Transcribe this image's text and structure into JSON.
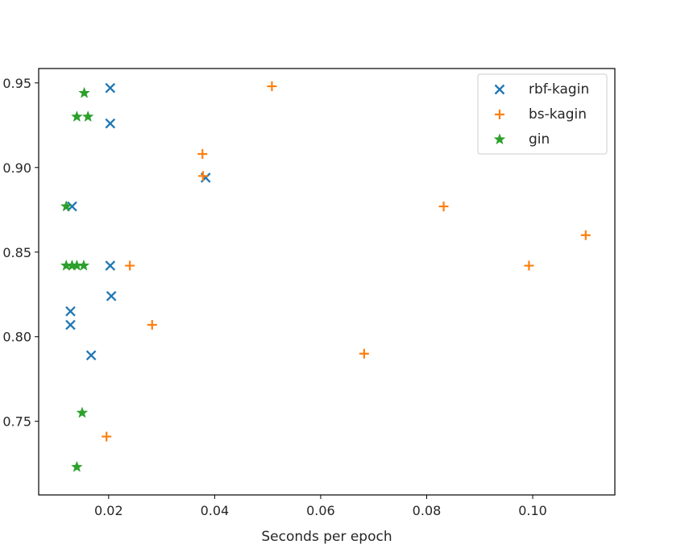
{
  "chart_data": {
    "type": "scatter",
    "title": "",
    "xlabel": "Seconds per epoch",
    "ylabel": "",
    "xlim": [
      0.0068,
      0.1155
    ],
    "ylim": [
      0.7065,
      0.9585
    ],
    "xticks": [
      0.02,
      0.04,
      0.06,
      0.08,
      0.1
    ],
    "xtick_labels": [
      "0.02",
      "0.04",
      "0.06",
      "0.08",
      "0.10"
    ],
    "yticks": [
      0.75,
      0.8,
      0.85,
      0.9,
      0.95
    ],
    "ytick_labels": [
      "0.75",
      "0.80",
      "0.85",
      "0.90",
      "0.95"
    ],
    "grid": false,
    "legend_position": "top-right",
    "series": [
      {
        "name": "rbf-kagin",
        "marker": "x",
        "color": "#1f77b4",
        "points": [
          {
            "x": 0.0203,
            "y": 0.947
          },
          {
            "x": 0.0203,
            "y": 0.926
          },
          {
            "x": 0.0383,
            "y": 0.894
          },
          {
            "x": 0.0131,
            "y": 0.877
          },
          {
            "x": 0.0203,
            "y": 0.842
          },
          {
            "x": 0.0205,
            "y": 0.824
          },
          {
            "x": 0.0128,
            "y": 0.815
          },
          {
            "x": 0.0128,
            "y": 0.807
          },
          {
            "x": 0.0167,
            "y": 0.789
          }
        ]
      },
      {
        "name": "bs-kagin",
        "marker": "+",
        "color": "#ff7f0e",
        "points": [
          {
            "x": 0.0508,
            "y": 0.948
          },
          {
            "x": 0.0377,
            "y": 0.908
          },
          {
            "x": 0.0378,
            "y": 0.895
          },
          {
            "x": 0.0832,
            "y": 0.877
          },
          {
            "x": 0.11,
            "y": 0.86
          },
          {
            "x": 0.024,
            "y": 0.842
          },
          {
            "x": 0.0993,
            "y": 0.842
          },
          {
            "x": 0.0282,
            "y": 0.807
          },
          {
            "x": 0.0682,
            "y": 0.79
          },
          {
            "x": 0.0196,
            "y": 0.741
          }
        ]
      },
      {
        "name": "gin",
        "marker": "*",
        "color": "#2ca02c",
        "points": [
          {
            "x": 0.0154,
            "y": 0.944
          },
          {
            "x": 0.014,
            "y": 0.93
          },
          {
            "x": 0.0161,
            "y": 0.93
          },
          {
            "x": 0.012,
            "y": 0.877
          },
          {
            "x": 0.012,
            "y": 0.842
          },
          {
            "x": 0.0131,
            "y": 0.842
          },
          {
            "x": 0.014,
            "y": 0.842
          },
          {
            "x": 0.0153,
            "y": 0.842
          },
          {
            "x": 0.015,
            "y": 0.755
          },
          {
            "x": 0.014,
            "y": 0.723
          }
        ]
      }
    ]
  }
}
